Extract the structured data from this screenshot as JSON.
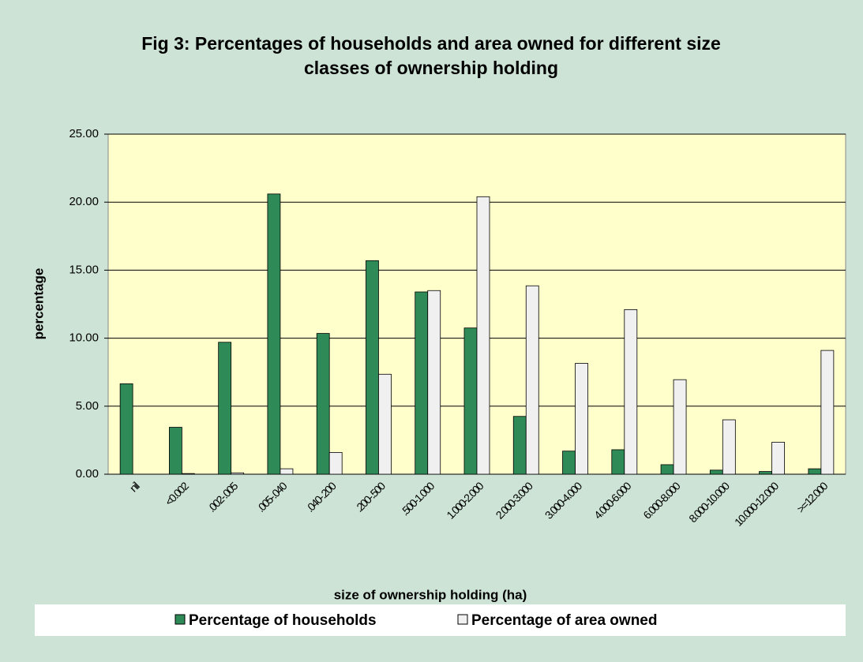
{
  "chart_data": {
    "type": "bar",
    "title": "Fig 3: Percentages of households and area owned for different size classes of ownership holding",
    "xlabel": "size of ownership holding (ha)",
    "ylabel": "percentage",
    "categories": [
      "nil",
      "<0.002",
      ".002-.005",
      ".005-.040",
      ".040-.200",
      ".200-.500",
      ".500-1.000",
      "1.000-2.000",
      "2.000-3.000",
      "3.000-4.000",
      "4.000-6.000",
      "6.000-8.000",
      "8.000-10.000",
      "10.000-12.000",
      ">=12.000"
    ],
    "series": [
      {
        "name": "Percentage of households",
        "color": "#2e8b57",
        "values": [
          6.65,
          3.45,
          9.7,
          20.6,
          10.35,
          15.7,
          13.4,
          10.75,
          4.25,
          1.7,
          1.8,
          0.7,
          0.3,
          0.2,
          0.4
        ]
      },
      {
        "name": "Percentage of area owned",
        "color": "#f0f0f0",
        "values": [
          0,
          0.05,
          0.1,
          0.4,
          1.6,
          7.35,
          13.5,
          20.4,
          13.85,
          8.15,
          12.1,
          6.95,
          4.0,
          2.35,
          9.1
        ]
      }
    ],
    "ylim": [
      0,
      25
    ],
    "yticks": [
      {
        "value": 0,
        "label": "0.00"
      },
      {
        "value": 5,
        "label": "5.00"
      },
      {
        "value": 10,
        "label": "10.00"
      },
      {
        "value": 15,
        "label": "15.00"
      },
      {
        "value": 20,
        "label": "20.00"
      },
      {
        "value": 25,
        "label": "25.00"
      }
    ],
    "grid": true,
    "legend": "bottom"
  }
}
